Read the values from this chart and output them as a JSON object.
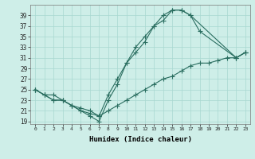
{
  "background_color": "#ceeee8",
  "grid_color": "#a8d8d0",
  "line_color": "#2a6e60",
  "xlabel": "Humidex (Indice chaleur)",
  "xlim": [
    -0.5,
    23.5
  ],
  "ylim": [
    18.5,
    41.0
  ],
  "xtick_vals": [
    0,
    1,
    2,
    3,
    4,
    5,
    6,
    7,
    8,
    9,
    10,
    11,
    12,
    13,
    14,
    15,
    16,
    17,
    18,
    19,
    20,
    21,
    22,
    23
  ],
  "ytick_vals": [
    19,
    21,
    23,
    25,
    27,
    29,
    31,
    33,
    35,
    37,
    39
  ],
  "line1_x": [
    0,
    1,
    2,
    3,
    4,
    5,
    6,
    7,
    8,
    9,
    10,
    11,
    12,
    13,
    14,
    15,
    16,
    17,
    22,
    23
  ],
  "line1_y": [
    25,
    24,
    23,
    23,
    22,
    21,
    20.5,
    20,
    24,
    27,
    30,
    32,
    34,
    37,
    38,
    40,
    40,
    39,
    31,
    32
  ],
  "line2_x": [
    0,
    1,
    2,
    3,
    4,
    5,
    6,
    7,
    8,
    9,
    10,
    11,
    12,
    13,
    14,
    15,
    16,
    17,
    18,
    22,
    23
  ],
  "line2_y": [
    25,
    24,
    23,
    23,
    22,
    21,
    20,
    19,
    23,
    26,
    30,
    33,
    35,
    37,
    39,
    40,
    40,
    39,
    36,
    31,
    32
  ],
  "line3_x": [
    0,
    1,
    2,
    3,
    4,
    5,
    6,
    7,
    8,
    9,
    10,
    11,
    12,
    13,
    14,
    15,
    16,
    17,
    18,
    19,
    20,
    21,
    22,
    23
  ],
  "line3_y": [
    25,
    24,
    24,
    23,
    22,
    21.5,
    21,
    20,
    21,
    22,
    23,
    24,
    25,
    26,
    27,
    27.5,
    28.5,
    29.5,
    30,
    30,
    30.5,
    31,
    31,
    32
  ]
}
